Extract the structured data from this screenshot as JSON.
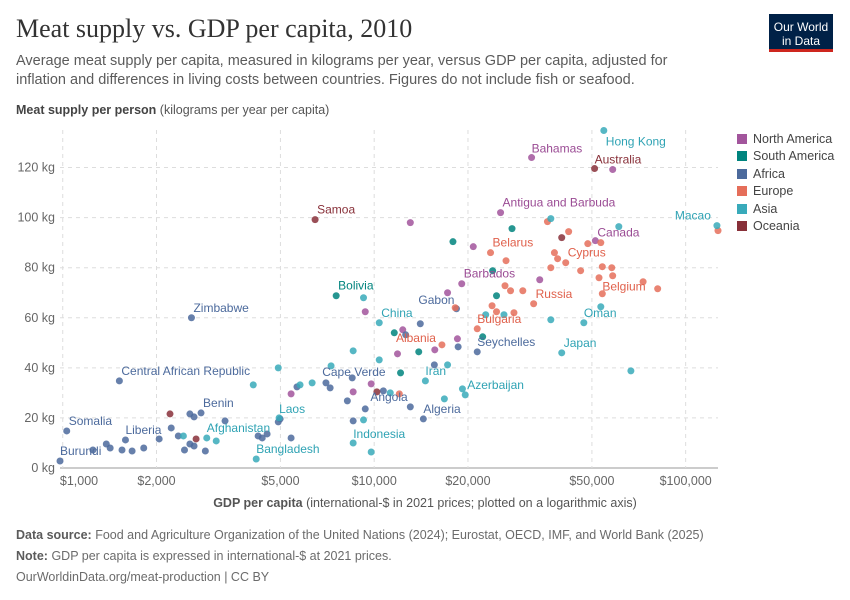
{
  "header": {
    "title": "Meat supply vs. GDP per capita, 2010",
    "subtitle": "Average meat supply per capita, measured in kilograms per year, versus GDP per capita, adjusted for inflation and differences in living costs between countries. Figures do not include fish or seafood.",
    "logo": "Our World in Data"
  },
  "footer": {
    "source_label": "Data source:",
    "source": "Food and Agriculture Organization of the United Nations (2024); Eurostat, OECD, IMF, and World Bank (2025)",
    "note_label": "Note:",
    "note": "GDP per capita is expressed in international-$ at 2021 prices.",
    "url": "OurWorldinData.org/meat-production | CC BY"
  },
  "chart_data": {
    "type": "scatter",
    "title": "Meat supply vs. GDP per capita, 2010",
    "ylabel_bold": "Meat supply per person",
    "ylabel_rest": "(kilograms per year per capita)",
    "xlabel_bold": "GDP per capita",
    "xlabel_rest": "(international-$ in 2021 prices; plotted on a logarithmic axis)",
    "x_scale": "log",
    "xlim": [
      980,
      127000
    ],
    "ylim": [
      0,
      135
    ],
    "grid": true,
    "legend_position": "top-right",
    "x_ticks": [
      {
        "v": 1000,
        "label": "$1,000"
      },
      {
        "v": 2000,
        "label": "$2,000"
      },
      {
        "v": 5000,
        "label": "$5,000"
      },
      {
        "v": 10000,
        "label": "$10,000"
      },
      {
        "v": 20000,
        "label": "$20,000"
      },
      {
        "v": 50000,
        "label": "$50,000"
      },
      {
        "v": 100000,
        "label": "$100,000"
      }
    ],
    "y_ticks": [
      {
        "v": 0,
        "label": "0 kg"
      },
      {
        "v": 20,
        "label": "20 kg"
      },
      {
        "v": 40,
        "label": "40 kg"
      },
      {
        "v": 60,
        "label": "60 kg"
      },
      {
        "v": 80,
        "label": "80 kg"
      },
      {
        "v": 100,
        "label": "100 kg"
      },
      {
        "v": 120,
        "label": "120 kg"
      }
    ],
    "series": [
      {
        "name": "North America",
        "color": "#a2559c",
        "label_color": "#9a4b94",
        "points": [
          [
            "Bahamas",
            32010,
            124
          ],
          [
            "Antigua and Barbuda",
            25450,
            102
          ],
          [
            "Barbados",
            19100,
            73.6
          ],
          [
            "Canada",
            51300,
            90.8
          ],
          [
            "",
            58300,
            119.2
          ],
          [
            "",
            13060,
            98
          ],
          [
            "",
            20800,
            88.4
          ],
          [
            "",
            17200,
            70
          ],
          [
            "",
            9360,
            62.4
          ],
          [
            "",
            12350,
            55.2
          ],
          [
            "",
            15650,
            47.2
          ],
          [
            "",
            18500,
            51.6
          ],
          [
            "",
            34000,
            75.2
          ],
          [
            "",
            5410,
            29.6
          ],
          [
            "",
            9780,
            33.6
          ],
          [
            "",
            8560,
            30.4
          ],
          [
            "",
            11880,
            45.6
          ]
        ]
      },
      {
        "name": "South America",
        "color": "#00847e",
        "label_color": "#00847e",
        "points": [
          [
            "Bolivia",
            7550,
            68.8
          ],
          [
            "",
            17900,
            90.4
          ],
          [
            "",
            27700,
            95.6
          ],
          [
            "",
            24000,
            78.8
          ],
          [
            "",
            24700,
            68.8
          ],
          [
            "",
            11600,
            54
          ],
          [
            "",
            13900,
            46.4
          ],
          [
            "",
            12150,
            38
          ],
          [
            "",
            22300,
            52.4
          ]
        ]
      },
      {
        "name": "Africa",
        "color": "#4c6a9c",
        "label_color": "#4c6a9c",
        "points": [
          [
            "Burundi",
            980,
            2.8
          ],
          [
            "Somalia",
            1030,
            14.8
          ],
          [
            "Liberia",
            1590,
            11.2
          ],
          [
            "Central African Republic",
            1520,
            34.8
          ],
          [
            "Zimbabwe",
            2590,
            60
          ],
          [
            "Benin",
            2780,
            22
          ],
          [
            "Cape Verde",
            8500,
            36
          ],
          [
            "Angola",
            13060,
            24.4
          ],
          [
            "Algeria",
            14380,
            19.6
          ],
          [
            "Gabon",
            18370,
            63.6
          ],
          [
            "Seychelles",
            21420,
            46.4
          ],
          [
            "",
            2230,
            16
          ],
          [
            "",
            2350,
            12.8
          ],
          [
            "",
            2560,
            9.6
          ],
          [
            "",
            2640,
            8.8
          ],
          [
            "",
            2460,
            7.2
          ],
          [
            "",
            2870,
            6.8
          ],
          [
            "",
            2560,
            21.6
          ],
          [
            "",
            2640,
            20.4
          ],
          [
            "",
            3320,
            18.8
          ],
          [
            "",
            2040,
            11.6
          ],
          [
            "",
            1820,
            8
          ],
          [
            "",
            1670,
            6.8
          ],
          [
            "",
            1550,
            7.2
          ],
          [
            "",
            1420,
            8
          ],
          [
            "",
            1380,
            9.6
          ],
          [
            "",
            1250,
            7.2
          ],
          [
            "",
            5650,
            32.4
          ],
          [
            "",
            4920,
            18.4
          ],
          [
            "",
            4240,
            12.8
          ],
          [
            "",
            4370,
            12
          ],
          [
            "",
            4530,
            13.6
          ],
          [
            "",
            5410,
            12
          ],
          [
            "",
            14060,
            57.6
          ],
          [
            "",
            18600,
            48.4
          ],
          [
            "",
            7220,
            32
          ],
          [
            "",
            7000,
            34
          ],
          [
            "",
            8200,
            26.8
          ],
          [
            "",
            9360,
            23.6
          ],
          [
            "",
            10700,
            30.8
          ],
          [
            "",
            8560,
            18.8
          ],
          [
            "",
            4990,
            19.6
          ],
          [
            "",
            15600,
            41.2
          ],
          [
            "",
            12620,
            53.2
          ]
        ]
      },
      {
        "name": "Europe",
        "color": "#e56e5a",
        "label_color": "#e0604b",
        "points": [
          [
            "Albania",
            16500,
            49.2
          ],
          [
            "Bulgaria",
            21420,
            55.6
          ],
          [
            "Belarus",
            23630,
            86
          ],
          [
            "Cyprus",
            41200,
            82
          ],
          [
            "Russia",
            32500,
            65.6
          ],
          [
            "Belgium",
            54000,
            69.6
          ],
          [
            "",
            127000,
            94.8
          ],
          [
            "",
            18200,
            64
          ],
          [
            "",
            12040,
            29.6
          ],
          [
            "",
            36000,
            98.4
          ],
          [
            "",
            42100,
            94.4
          ],
          [
            "",
            48500,
            89.6
          ],
          [
            "",
            53400,
            90
          ],
          [
            "",
            37900,
            86
          ],
          [
            "",
            38800,
            83.6
          ],
          [
            "",
            26500,
            82.8
          ],
          [
            "",
            36900,
            80
          ],
          [
            "",
            54000,
            80.4
          ],
          [
            "",
            57900,
            80
          ],
          [
            "",
            46000,
            78.8
          ],
          [
            "",
            52700,
            76
          ],
          [
            "",
            58300,
            76.8
          ],
          [
            "",
            26300,
            72.8
          ],
          [
            "",
            27400,
            70.8
          ],
          [
            "",
            30000,
            70.8
          ],
          [
            "",
            73000,
            74.4
          ],
          [
            "",
            81300,
            71.6
          ],
          [
            "",
            23900,
            64.8
          ],
          [
            "",
            24700,
            62.4
          ],
          [
            "",
            28100,
            62
          ]
        ]
      },
      {
        "name": "Asia",
        "color": "#38aaba",
        "label_color": "#2fa3b4",
        "points": [
          [
            "Afghanistan",
            2900,
            12
          ],
          [
            "Bangladesh",
            4180,
            3.6
          ],
          [
            "Laos",
            4950,
            20
          ],
          [
            "China",
            10380,
            58
          ],
          [
            "Indonesia",
            9780,
            6.4
          ],
          [
            "Iran",
            14600,
            34.8
          ],
          [
            "Azerbaijan",
            19600,
            29.2
          ],
          [
            "Hong Kong",
            54600,
            134.8
          ],
          [
            "Macao",
            126000,
            96.8
          ],
          [
            "Oman",
            47100,
            58
          ],
          [
            "Japan",
            40000,
            46
          ],
          [
            "",
            66700,
            38.8
          ],
          [
            "",
            2440,
            12.8
          ],
          [
            "",
            3110,
            10.8
          ],
          [
            "",
            4090,
            33.2
          ],
          [
            "",
            4920,
            40
          ],
          [
            "",
            9240,
            68
          ],
          [
            "",
            8560,
            46.8
          ],
          [
            "",
            10380,
            43.2
          ],
          [
            "",
            7270,
            40.8
          ],
          [
            "",
            6320,
            34
          ],
          [
            "",
            5780,
            33.2
          ],
          [
            "",
            11260,
            30
          ],
          [
            "",
            16800,
            27.6
          ],
          [
            "",
            19200,
            31.6
          ],
          [
            "",
            9240,
            19.2
          ],
          [
            "",
            8560,
            10
          ],
          [
            "",
            17200,
            41.2
          ],
          [
            "",
            36900,
            99.6
          ],
          [
            "",
            61000,
            96.4
          ],
          [
            "",
            53400,
            64.4
          ],
          [
            "",
            36900,
            59.2
          ],
          [
            "",
            26100,
            61.2
          ],
          [
            "",
            22800,
            61.2
          ]
        ]
      },
      {
        "name": "Oceania",
        "color": "#883039",
        "label_color": "#883039",
        "points": [
          [
            "Samoa",
            6460,
            99.2
          ],
          [
            "Australia",
            51000,
            119.6
          ],
          [
            "",
            40000,
            92
          ],
          [
            "",
            2210,
            21.6
          ],
          [
            "",
            2680,
            11.6
          ],
          [
            "",
            10200,
            30.4
          ]
        ]
      }
    ]
  }
}
